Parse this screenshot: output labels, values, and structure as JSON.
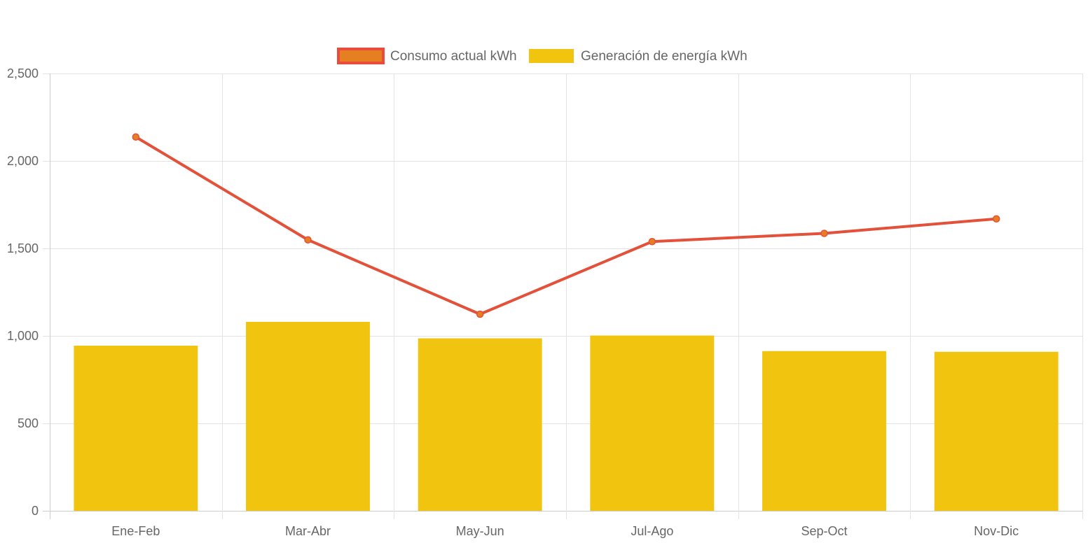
{
  "chart_data": {
    "type": "bar",
    "title": "",
    "xlabel": "",
    "ylabel": "",
    "categories": [
      "Ene-Feb",
      "Mar-Abr",
      "May-Jun",
      "Jul-Ago",
      "Sep-Oct",
      "Nov-Dic"
    ],
    "ylim": [
      0,
      2500
    ],
    "yticks": [
      0,
      500,
      1000,
      1500,
      2000,
      2500
    ],
    "ytick_labels": [
      "0",
      "500",
      "1,000",
      "1,500",
      "2,000",
      "2,500"
    ],
    "grid": true,
    "legend_position": "top-center",
    "series": [
      {
        "name": "Consumo actual kWh",
        "type": "line",
        "values": [
          2137,
          1549,
          1124,
          1539,
          1586,
          1669
        ],
        "line_color": "#e4513a",
        "point_color": "#e67e22",
        "legend_fill": "#e67e22",
        "legend_border": "#e74c3c"
      },
      {
        "name": "Generación de energía kWh",
        "type": "bar",
        "values": [
          944,
          1080,
          986,
          1002,
          913,
          909
        ],
        "color": "#f1c40f"
      }
    ]
  }
}
